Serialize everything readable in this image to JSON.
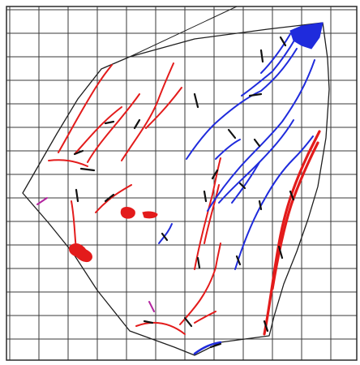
{
  "image": {
    "kind": "fracture map on grid",
    "colors": {
      "background": "#ffffff",
      "grid": "#3a3a3a",
      "outline": "#1f1f1f",
      "red_traces": "#e31b1b",
      "blue_traces": "#1f2bdc",
      "magenta_traces": "#b3249f",
      "tick_marks": "#111111"
    }
  }
}
